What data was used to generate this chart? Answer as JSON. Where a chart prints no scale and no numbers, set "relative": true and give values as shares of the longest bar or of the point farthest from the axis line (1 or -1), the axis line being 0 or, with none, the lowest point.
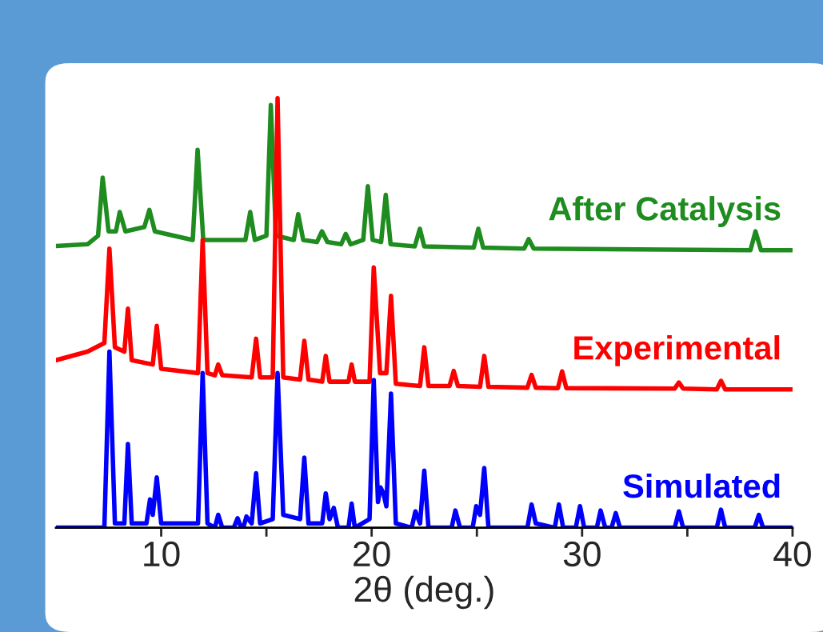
{
  "chart_data": {
    "type": "line",
    "relative": true,
    "xlabel": "2θ (deg.)",
    "xlim": [
      5,
      40
    ],
    "xticks": [
      10,
      {
        "value": 15,
        "label": null
      },
      20,
      {
        "value": 25,
        "label": null
      },
      30,
      {
        "value": 35,
        "label": null
      },
      40
    ],
    "series": [
      {
        "name": "After Catalysis",
        "color": "#1e8c1e",
        "x": [
          5.0,
          6.5,
          7.0,
          7.22,
          7.5,
          7.85,
          8.03,
          8.3,
          9.2,
          9.44,
          9.7,
          11.5,
          11.73,
          12.0,
          14.0,
          14.23,
          14.45,
          15.0,
          15.21,
          15.45,
          16.3,
          16.51,
          16.75,
          17.4,
          17.64,
          17.9,
          18.55,
          18.77,
          19.0,
          19.6,
          19.82,
          20.05,
          20.45,
          20.67,
          20.9,
          22.05,
          22.29,
          22.5,
          24.85,
          25.07,
          25.3,
          27.25,
          27.46,
          27.7,
          38.0,
          38.24,
          38.5,
          40.0
        ],
        "values": [
          0.656,
          0.66,
          0.68,
          0.815,
          0.69,
          0.69,
          0.735,
          0.69,
          0.7,
          0.74,
          0.69,
          0.67,
          0.88,
          0.67,
          0.67,
          0.735,
          0.67,
          0.68,
          0.984,
          0.68,
          0.67,
          0.73,
          0.67,
          0.665,
          0.69,
          0.665,
          0.66,
          0.684,
          0.66,
          0.67,
          0.795,
          0.67,
          0.665,
          0.775,
          0.66,
          0.655,
          0.696,
          0.655,
          0.652,
          0.696,
          0.652,
          0.65,
          0.672,
          0.65,
          0.646,
          0.69,
          0.646,
          0.646
        ]
      },
      {
        "name": "Experimental",
        "color": "#ff0000",
        "x": [
          5.0,
          6.5,
          7.3,
          7.54,
          7.8,
          8.25,
          8.42,
          8.6,
          9.6,
          9.79,
          10.0,
          11.75,
          11.97,
          12.2,
          12.55,
          12.71,
          12.9,
          14.3,
          14.51,
          14.7,
          15.3,
          15.53,
          15.8,
          16.6,
          16.8,
          17.0,
          17.65,
          17.82,
          18.0,
          18.9,
          19.05,
          19.2,
          19.9,
          20.1,
          20.4,
          20.7,
          20.92,
          21.15,
          22.3,
          22.5,
          22.7,
          23.7,
          23.9,
          24.1,
          25.15,
          25.35,
          25.55,
          27.4,
          27.6,
          27.8,
          28.85,
          29.05,
          29.25,
          34.4,
          34.6,
          34.8,
          36.4,
          36.6,
          36.8,
          40.0
        ],
        "values": [
          0.39,
          0.41,
          0.43,
          0.65,
          0.42,
          0.41,
          0.51,
          0.39,
          0.38,
          0.47,
          0.37,
          0.36,
          0.67,
          0.36,
          0.355,
          0.38,
          0.355,
          0.35,
          0.44,
          0.35,
          0.35,
          1.0,
          0.35,
          0.345,
          0.435,
          0.345,
          0.34,
          0.4,
          0.34,
          0.34,
          0.38,
          0.34,
          0.34,
          0.606,
          0.36,
          0.36,
          0.54,
          0.335,
          0.33,
          0.42,
          0.33,
          0.33,
          0.365,
          0.33,
          0.328,
          0.4,
          0.328,
          0.326,
          0.356,
          0.326,
          0.325,
          0.364,
          0.325,
          0.324,
          0.338,
          0.324,
          0.322,
          0.342,
          0.322,
          0.322
        ]
      },
      {
        "name": "Simulated",
        "color": "#0000ff",
        "x": [
          5.0,
          7.3,
          7.54,
          7.8,
          8.25,
          8.42,
          8.6,
          9.3,
          9.47,
          9.6,
          9.79,
          10.0,
          11.75,
          11.97,
          12.2,
          12.55,
          12.71,
          12.9,
          13.45,
          13.63,
          13.8,
          13.9,
          14.05,
          14.3,
          14.51,
          14.7,
          15.3,
          15.53,
          15.8,
          16.6,
          16.8,
          17.0,
          17.65,
          17.82,
          18.0,
          18.2,
          18.4,
          18.9,
          19.05,
          19.2,
          19.9,
          20.1,
          20.3,
          20.42,
          20.56,
          20.7,
          20.92,
          21.15,
          21.9,
          22.08,
          22.3,
          22.5,
          22.7,
          23.8,
          23.98,
          24.2,
          24.8,
          24.97,
          25.15,
          25.35,
          25.55,
          27.4,
          27.6,
          27.8,
          28.7,
          28.9,
          29.1,
          29.7,
          29.9,
          30.1,
          30.7,
          30.88,
          31.1,
          31.4,
          31.6,
          31.8,
          34.4,
          34.6,
          34.8,
          36.4,
          36.6,
          36.8,
          38.2,
          38.4,
          38.6,
          40.0
        ],
        "values": [
          0.0,
          0.0,
          0.41,
          0.01,
          0.01,
          0.195,
          0.01,
          0.01,
          0.066,
          0.03,
          0.117,
          0.01,
          0.01,
          0.36,
          0.01,
          0.0,
          0.03,
          0.0,
          0.0,
          0.022,
          0.0,
          0.0,
          0.026,
          0.01,
          0.127,
          0.01,
          0.02,
          0.36,
          0.03,
          0.02,
          0.163,
          0.01,
          0.01,
          0.08,
          0.02,
          0.046,
          0.0,
          0.0,
          0.056,
          0.0,
          0.02,
          0.344,
          0.06,
          0.094,
          0.08,
          0.05,
          0.312,
          0.01,
          0.0,
          0.038,
          0.01,
          0.133,
          0.0,
          0.0,
          0.04,
          0.0,
          0.0,
          0.05,
          0.03,
          0.139,
          0.0,
          0.0,
          0.054,
          0.01,
          0.0,
          0.054,
          0.0,
          0.0,
          0.05,
          0.0,
          0.0,
          0.04,
          0.0,
          0.0,
          0.034,
          0.0,
          0.0,
          0.038,
          0.0,
          0.0,
          0.042,
          0.0,
          0.0,
          0.03,
          0.0,
          0.0
        ]
      }
    ]
  }
}
